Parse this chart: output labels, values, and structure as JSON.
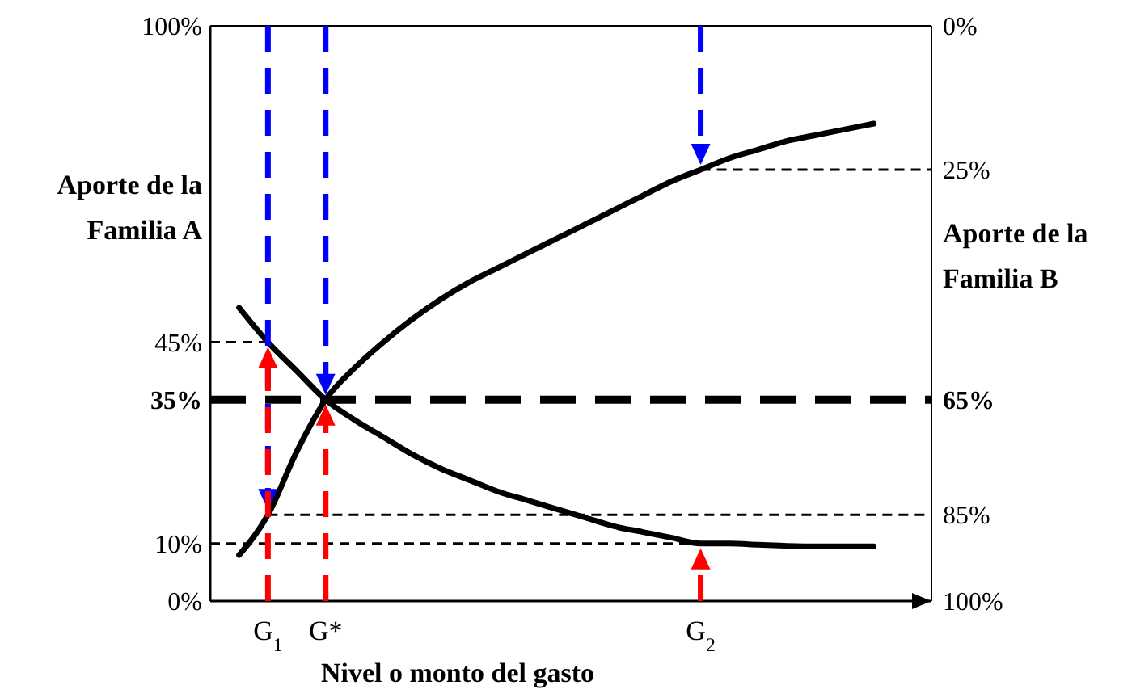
{
  "chart_data": {
    "type": "line",
    "xlabel": "Nivel o monto del gasto",
    "ylabel": "Aporte de la Familia A",
    "y2label": "Aporte de la Familia B",
    "categories": [
      null,
      null,
      "G$_{1}$",
      null,
      "G*",
      null,
      null,
      null,
      null,
      null,
      null,
      null,
      null,
      null,
      null,
      null,
      null,
      "G$_{2}$",
      null,
      null,
      null,
      null,
      null,
      null,
      null,
      null
    ],
    "ylim": [
      0,
      100
    ],
    "yticks": [
      {
        "value": 0,
        "label": "0%"
      },
      {
        "value": 10,
        "label": "10%"
      },
      {
        "value": 35,
        "label": "35%"
      },
      {
        "value": 45,
        "label": "45%"
      },
      {
        "value": 100,
        "label": "100%"
      }
    ],
    "y2lim": [
      100,
      0
    ],
    "y2ticks": [
      {
        "value": 0,
        "label": "0%"
      },
      {
        "value": 25,
        "label": "25%"
      },
      {
        "value": 65,
        "label": "65%"
      },
      {
        "value": 85,
        "label": "85%"
      },
      {
        "value": 100,
        "label": "100%"
      }
    ],
    "series": [
      {
        "color": "#000000",
        "values": [
          null,
          51,
          45,
          40,
          35,
          31.5,
          28.5,
          25.5,
          23,
          21,
          19,
          17.5,
          16,
          14.5,
          13,
          12,
          11,
          10,
          10,
          9.8,
          9.6,
          9.5,
          9.5,
          9.5,
          null,
          null
        ]
      },
      {
        "color": "#000000",
        "values": [
          null,
          8,
          15,
          26,
          35,
          40.5,
          45,
          49,
          52.5,
          55.5,
          58,
          60.5,
          63,
          65.5,
          68,
          70.5,
          73,
          75,
          77,
          78.5,
          80,
          81,
          82,
          83,
          null,
          null
        ]
      }
    ],
    "ref_lines": [
      {
        "axis": "y",
        "value": 35,
        "line_style": "dashed",
        "color": "#000000"
      },
      {
        "axis": "y",
        "value": 45,
        "line_style": "dotted",
        "color": "#000000"
      },
      {
        "axis": "y",
        "value": 10,
        "line_style": "dotted",
        "color": "#000000"
      },
      {
        "axis": "y2",
        "value": 25,
        "line_style": "dotted",
        "color": "#000000"
      },
      {
        "axis": "y2",
        "value": 85,
        "line_style": "dotted",
        "color": "#000000"
      }
    ],
    "marker": "none",
    "line_style": "solid"
  }
}
